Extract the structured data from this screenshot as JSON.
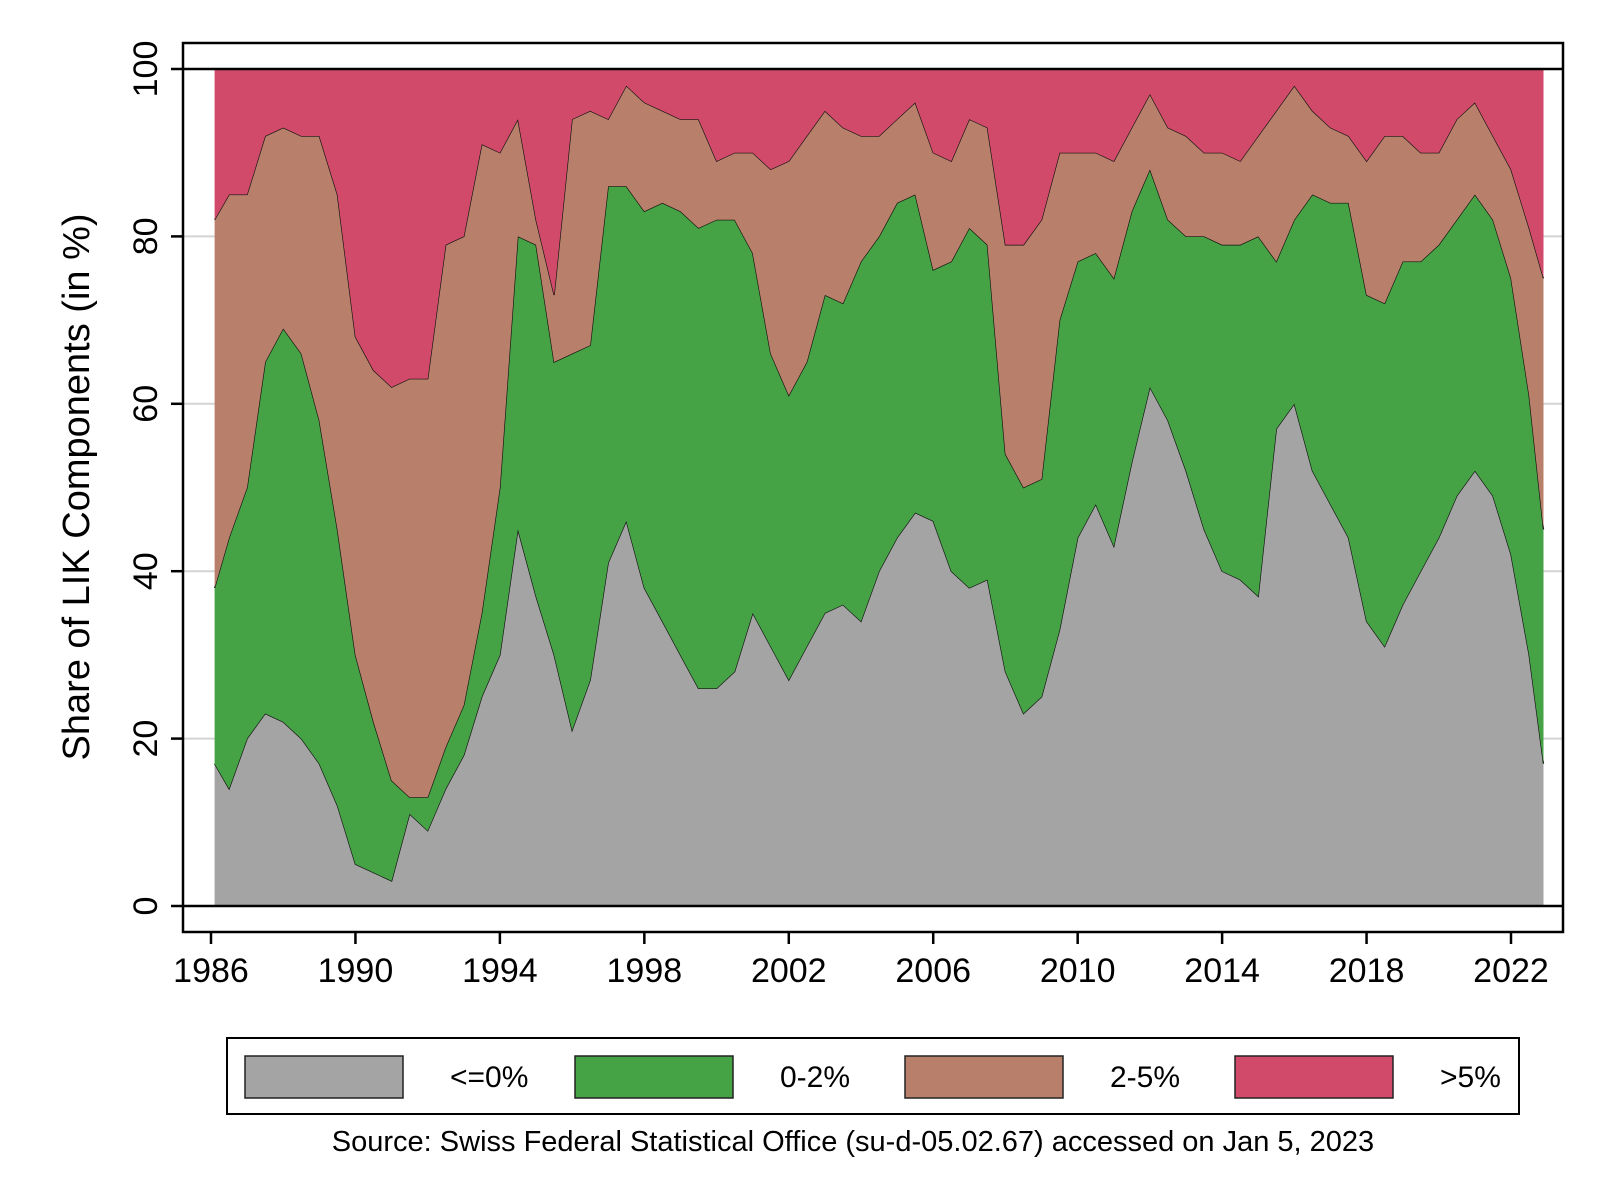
{
  "chart_data": {
    "type": "area",
    "stacked": true,
    "ylabel": "Share of LIK Components (in %)",
    "xlabel": "",
    "xlim": [
      1986,
      2023.5
    ],
    "ylim": [
      0,
      100
    ],
    "xticks": [
      1986,
      1990,
      1994,
      1998,
      2002,
      2006,
      2010,
      2014,
      2018,
      2022
    ],
    "yticks": [
      0,
      20,
      40,
      60,
      80,
      100
    ],
    "grid": "horizontal",
    "legend_position": "bottom",
    "source": "Source: Swiss Federal Statistical Office (su-d-05.02.67) accessed on Jan 5, 2023",
    "x": [
      1986.1,
      1986.5,
      1987,
      1987.5,
      1988,
      1988.5,
      1989,
      1989.5,
      1990,
      1990.5,
      1991,
      1991.5,
      1992,
      1992.5,
      1993,
      1993.5,
      1994,
      1994.5,
      1995,
      1995.5,
      1996,
      1996.5,
      1997,
      1997.5,
      1998,
      1998.5,
      1999,
      1999.5,
      2000,
      2000.5,
      2001,
      2001.5,
      2002,
      2002.5,
      2003,
      2003.5,
      2004,
      2004.5,
      2005,
      2005.5,
      2006,
      2006.5,
      2007,
      2007.5,
      2008,
      2008.5,
      2009,
      2009.5,
      2010,
      2010.5,
      2011,
      2011.5,
      2012,
      2012.5,
      2013,
      2013.5,
      2014,
      2014.5,
      2015,
      2015.5,
      2016,
      2016.5,
      2017,
      2017.5,
      2018,
      2018.5,
      2019,
      2019.5,
      2020,
      2020.5,
      2021,
      2021.5,
      2022,
      2022.5,
      2022.9
    ],
    "series": [
      {
        "name": "<=0%",
        "color": "#a4a4a4",
        "values": [
          17,
          14,
          20,
          23,
          22,
          20,
          17,
          12,
          5,
          4,
          3,
          11,
          9,
          14,
          18,
          25,
          30,
          45,
          37,
          30,
          21,
          27,
          41,
          46,
          38,
          34,
          30,
          26,
          26,
          28,
          35,
          31,
          27,
          31,
          35,
          36,
          34,
          40,
          44,
          47,
          46,
          40,
          38,
          39,
          28,
          23,
          25,
          33,
          44,
          48,
          43,
          53,
          62,
          58,
          52,
          45,
          40,
          39,
          37,
          57,
          60,
          52,
          48,
          44,
          34,
          31,
          36,
          40,
          44,
          49,
          52,
          49,
          42,
          30,
          17
        ]
      },
      {
        "name": "0-2%",
        "color": "#45a245",
        "values": [
          21,
          30,
          30,
          42,
          47,
          46,
          41,
          33,
          25,
          18,
          12,
          2,
          4,
          5,
          6,
          10,
          20,
          35,
          42,
          35,
          45,
          40,
          45,
          40,
          45,
          50,
          53,
          55,
          56,
          54,
          43,
          35,
          34,
          34,
          38,
          36,
          43,
          40,
          40,
          38,
          30,
          37,
          43,
          40,
          26,
          27,
          26,
          37,
          33,
          30,
          32,
          30,
          26,
          24,
          28,
          35,
          39,
          40,
          43,
          20,
          22,
          33,
          36,
          40,
          39,
          41,
          41,
          37,
          35,
          33,
          33,
          33,
          33,
          31,
          28
        ]
      },
      {
        "name": "2-5%",
        "color": "#b8806a",
        "values": [
          44,
          41,
          35,
          27,
          24,
          26,
          34,
          40,
          38,
          42,
          47,
          50,
          50,
          60,
          56,
          56,
          40,
          14,
          3,
          8,
          28,
          28,
          8,
          12,
          13,
          11,
          11,
          13,
          7,
          8,
          12,
          22,
          28,
          27,
          22,
          21,
          15,
          12,
          10,
          11,
          14,
          12,
          13,
          14,
          25,
          29,
          31,
          20,
          13,
          12,
          14,
          10,
          9,
          11,
          12,
          10,
          11,
          10,
          12,
          18,
          16,
          10,
          9,
          8,
          16,
          20,
          15,
          13,
          11,
          12,
          11,
          10,
          13,
          20,
          30
        ]
      },
      {
        "name": ">5%",
        "color": "#d14a6a",
        "values": [
          18,
          15,
          15,
          8,
          7,
          8,
          8,
          15,
          32,
          36,
          38,
          37,
          37,
          21,
          20,
          9,
          10,
          6,
          18,
          27,
          6,
          5,
          6,
          2,
          4,
          5,
          6,
          6,
          11,
          10,
          10,
          12,
          11,
          8,
          5,
          7,
          8,
          8,
          6,
          4,
          10,
          11,
          6,
          7,
          21,
          21,
          18,
          10,
          10,
          10,
          11,
          7,
          3,
          7,
          8,
          10,
          10,
          11,
          8,
          5,
          2,
          5,
          7,
          8,
          11,
          8,
          8,
          10,
          10,
          6,
          4,
          8,
          12,
          19,
          25
        ]
      }
    ]
  }
}
